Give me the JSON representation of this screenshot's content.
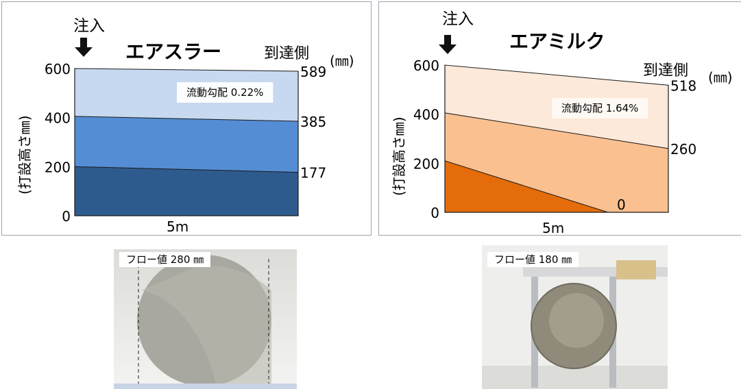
{
  "chart_data": [
    {
      "type": "area",
      "title": "エアスラー",
      "ylabel": "(打設高さ㎜)",
      "xlabel": "5m",
      "ylim": [
        0,
        600
      ],
      "yticks": [
        "600",
        "400",
        "200",
        "0"
      ],
      "injection_label": "注入",
      "arrival_label": "到達側",
      "arrival_unit": "(㎜)",
      "annotation": "流動勾配 0.22%",
      "x": [
        0,
        5
      ],
      "series": [
        {
          "values": [
            600,
            589
          ],
          "end_label": "589",
          "color": "#c6d9f0"
        },
        {
          "values": [
            405,
            385
          ],
          "end_label": "385",
          "color": "#548dd4"
        },
        {
          "values": [
            200,
            177
          ],
          "end_label": "177",
          "color": "#2e5b8e"
        }
      ]
    },
    {
      "type": "area",
      "title": "エアミルク",
      "ylabel": "(打設高さ㎜)",
      "xlabel": "5m",
      "ylim": [
        0,
        600
      ],
      "yticks": [
        "600",
        "400",
        "200",
        "0"
      ],
      "injection_label": "注入",
      "arrival_label": "到達側",
      "arrival_unit": "(㎜)",
      "annotation": "流動勾配 1.64%",
      "x": [
        0,
        5
      ],
      "series": [
        {
          "values": [
            600,
            518
          ],
          "end_label": "518",
          "color": "#fde9d9"
        },
        {
          "values": [
            405,
            260
          ],
          "end_label": "260",
          "color": "#fac090"
        },
        {
          "values": [
            210,
            0
          ],
          "end_label": "0",
          "color": "#e46c0a"
        }
      ]
    }
  ],
  "photos": [
    {
      "label": "フロー値 280 ㎜"
    },
    {
      "label": "フロー値 180 ㎜"
    }
  ]
}
